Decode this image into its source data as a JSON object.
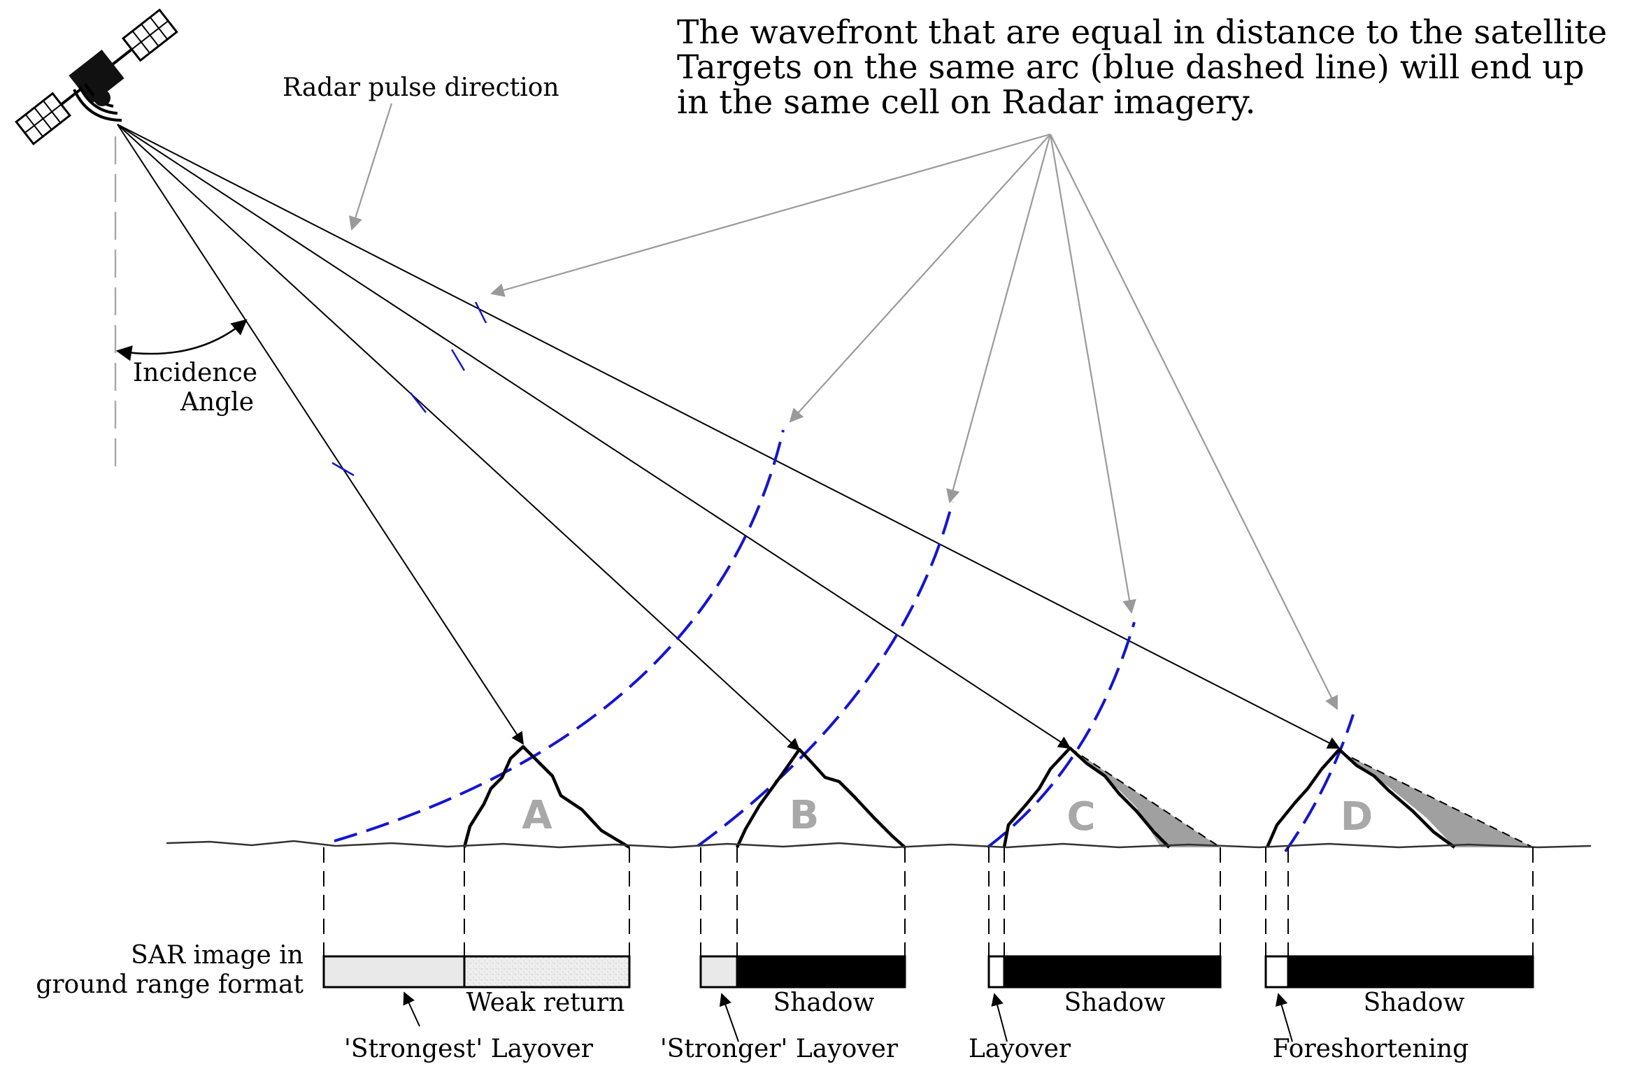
{
  "heading": {
    "line1": "The wavefront that are equal in distance to the satellite",
    "line2": "Targets on the same arc (blue dashed line) will end up",
    "line3": "in the same cell on Radar imagery."
  },
  "labels": {
    "radar_pulse_direction": "Radar pulse direction",
    "incidence_angle_line1": "Incidence",
    "incidence_angle_line2": "Angle",
    "sar_image_line1": "SAR image in",
    "sar_image_line2": "ground range format"
  },
  "targets": [
    {
      "id": "A",
      "caption_left": "'Strongest' Layover",
      "caption_right": "Weak return"
    },
    {
      "id": "B",
      "caption_left": "'Stronger' Layover",
      "caption_right": "Shadow"
    },
    {
      "id": "C",
      "caption_left": "Layover",
      "caption_right": "Shadow"
    },
    {
      "id": "D",
      "caption_left": "Foreshortening",
      "caption_right": "Shadow"
    }
  ],
  "colors": {
    "wavefront": "#1515d0",
    "pointer": "#9a9a9a",
    "shadow_fill": "#a0a0a0",
    "layover_fill": "#e9e9e9",
    "image_shadow": "#000000"
  },
  "icons": [
    "satellite-icon"
  ]
}
